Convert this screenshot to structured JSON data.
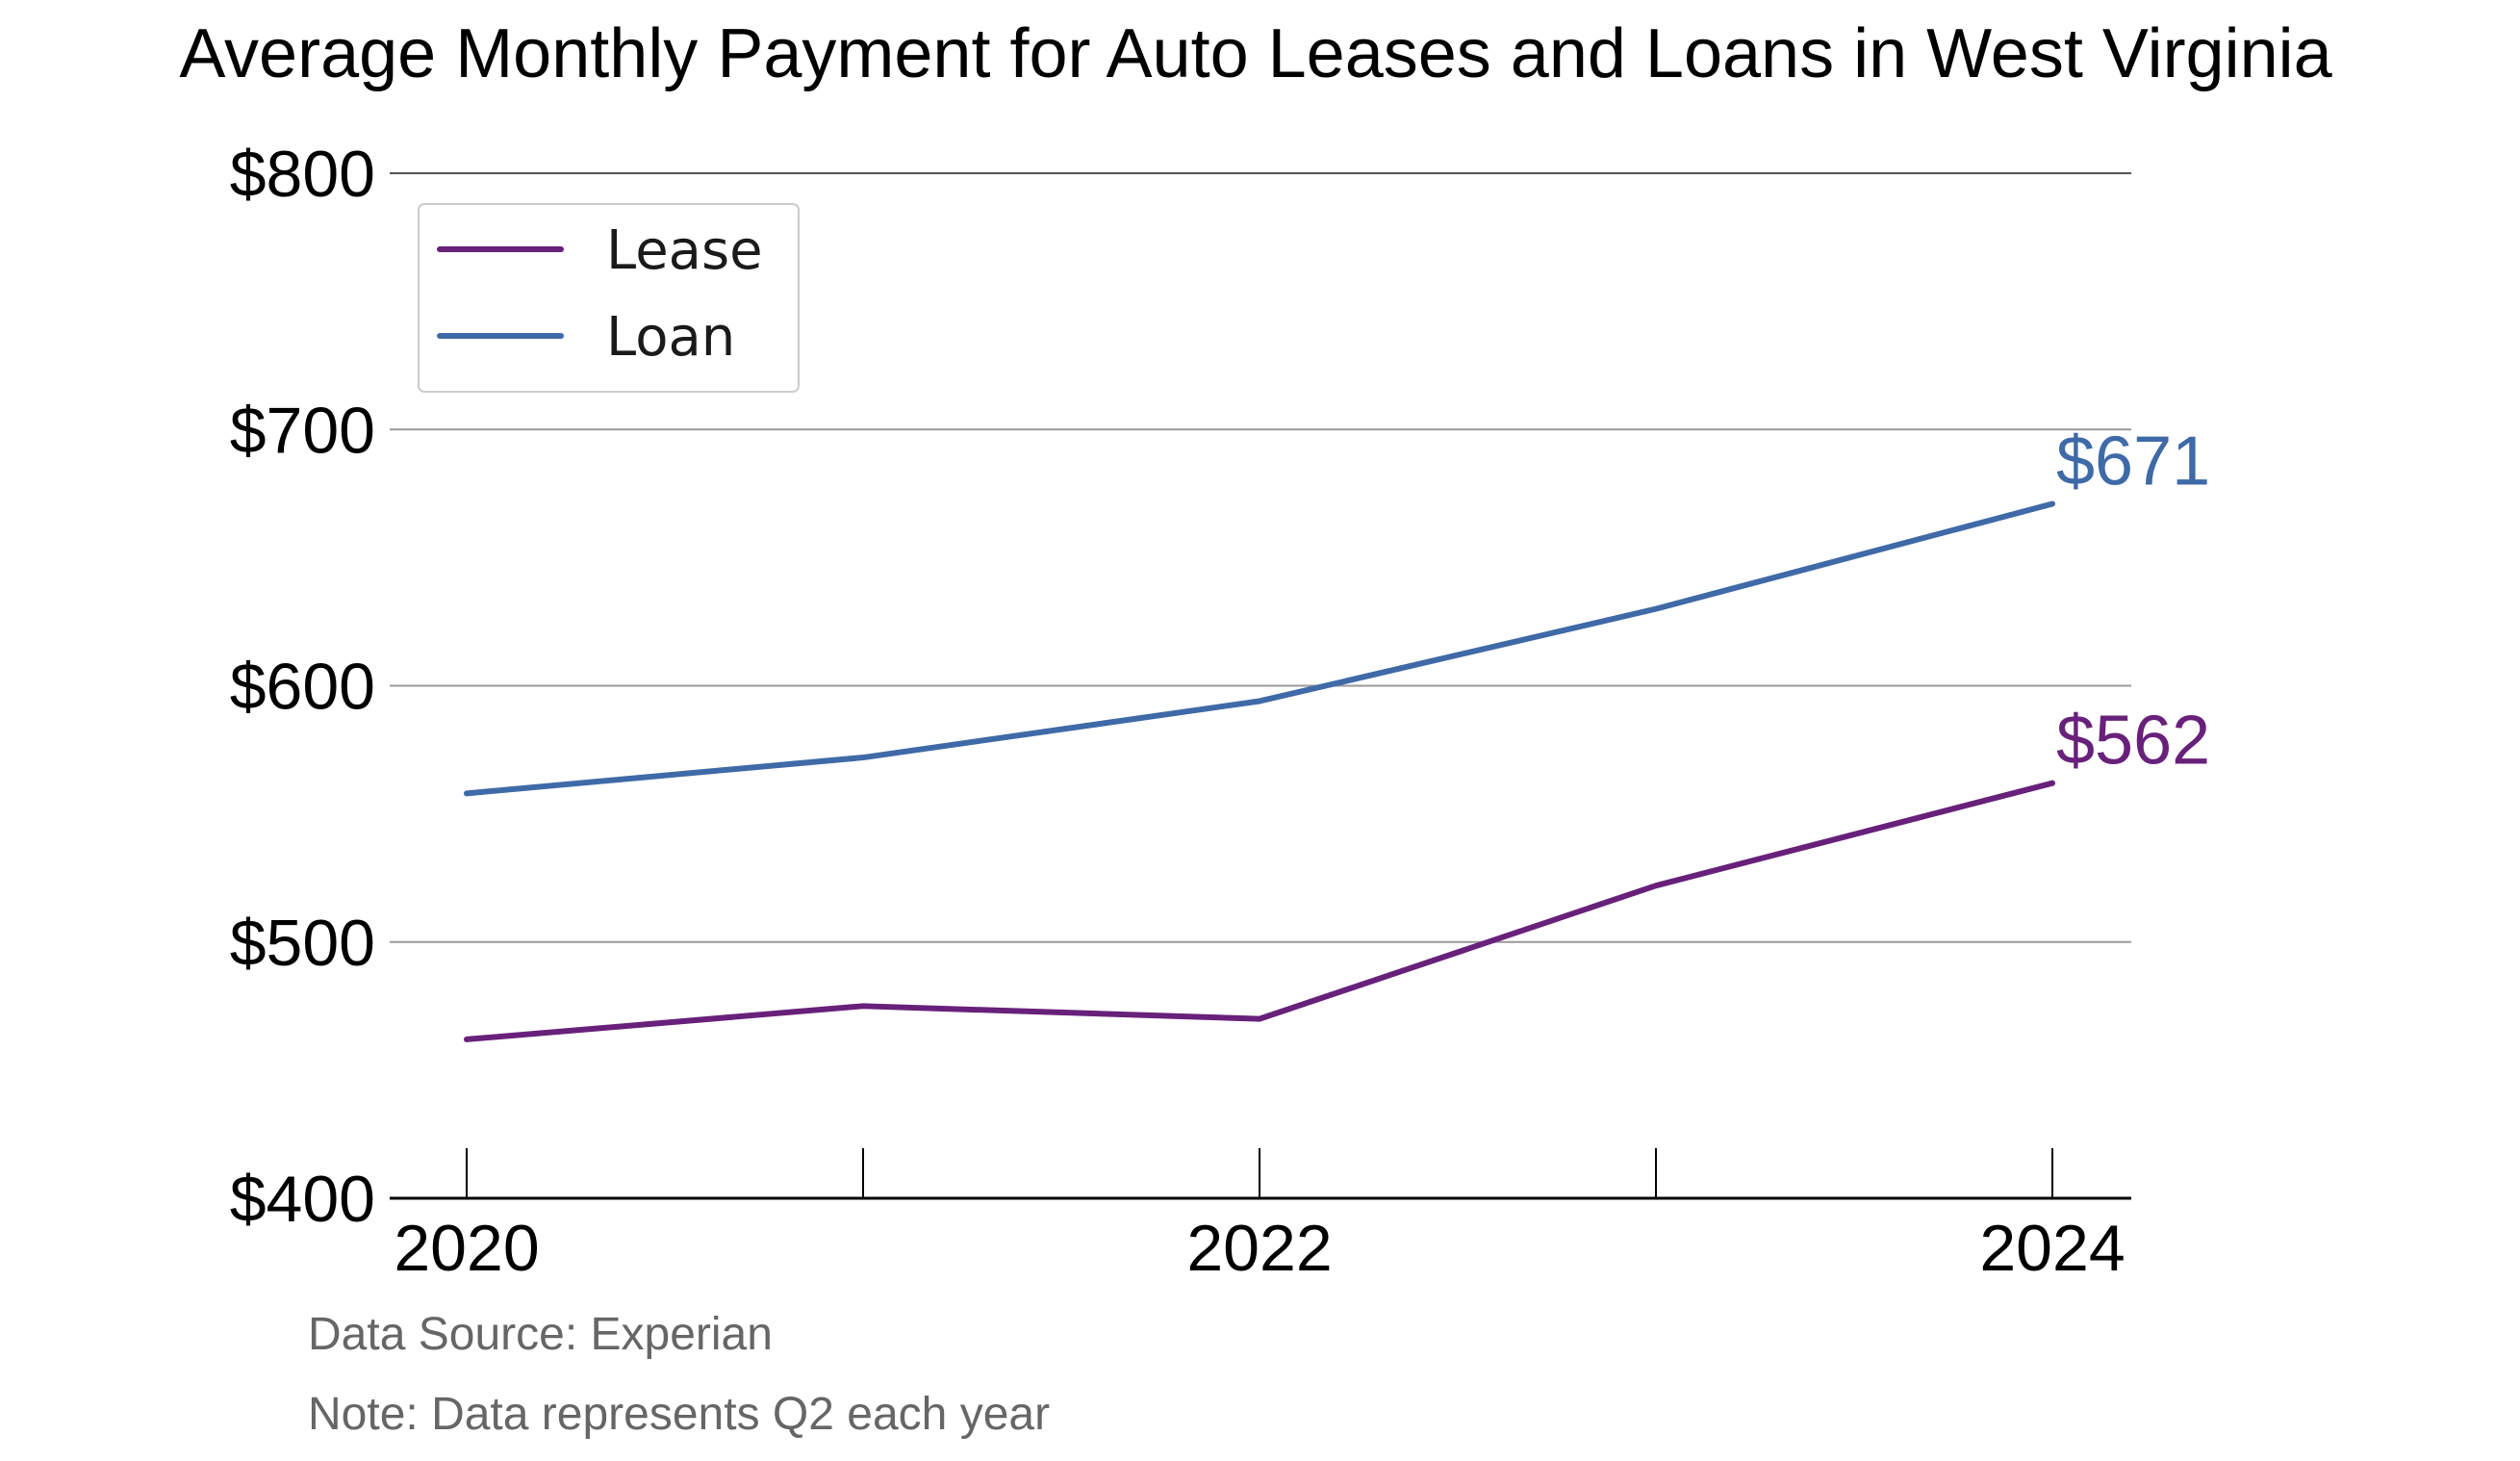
{
  "chart_data": {
    "type": "line",
    "title": "Average Monthly Payment for Auto Leases and Loans in West Virginia",
    "x": [
      2020,
      2021,
      2022,
      2023,
      2024
    ],
    "x_tick_labels": [
      "2020",
      "2022",
      "2024"
    ],
    "x_tick_values": [
      2020,
      2022,
      2024
    ],
    "y_tick_labels": [
      "$400",
      "$500",
      "$600",
      "$700",
      "$800"
    ],
    "y_tick_values": [
      400,
      500,
      600,
      700,
      800
    ],
    "ylim": [
      400,
      800
    ],
    "grid": true,
    "legend_position": "top-left",
    "series": [
      {
        "name": "Lease",
        "color": "#68217a",
        "values": [
          462,
          475,
          470,
          522,
          562
        ],
        "end_label": "$562"
      },
      {
        "name": "Loan",
        "color": "#3f6aa7",
        "values": [
          558,
          572,
          594,
          630,
          671
        ],
        "end_label": "$671"
      }
    ]
  },
  "notes": {
    "source": "Data Source: Experian",
    "note": "Note: Data represents Q2 each year"
  }
}
